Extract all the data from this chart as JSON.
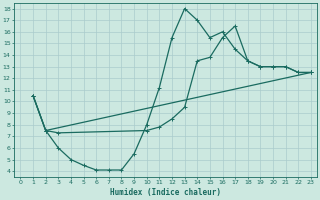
{
  "title": "",
  "xlabel": "Humidex (Indice chaleur)",
  "xlim": [
    -0.5,
    23.5
  ],
  "ylim": [
    3.5,
    18.5
  ],
  "xticks": [
    0,
    1,
    2,
    3,
    4,
    5,
    6,
    7,
    8,
    9,
    10,
    11,
    12,
    13,
    14,
    15,
    16,
    17,
    18,
    19,
    20,
    21,
    22,
    23
  ],
  "yticks": [
    4,
    5,
    6,
    7,
    8,
    9,
    10,
    11,
    12,
    13,
    14,
    15,
    16,
    17,
    18
  ],
  "bg_color": "#cce8e0",
  "grid_color": "#aacccc",
  "line_color": "#1a6b60",
  "line_width": 0.9,
  "marker": "+",
  "marker_size": 3,
  "curves": [
    {
      "x": [
        1,
        2,
        3,
        4,
        5,
        6,
        7,
        8,
        9,
        10,
        11,
        12,
        13,
        14,
        15,
        16,
        17,
        18,
        19,
        20,
        21,
        22,
        23
      ],
      "y": [
        10.5,
        7.5,
        6.0,
        5.0,
        4.5,
        4.1,
        4.1,
        4.1,
        5.5,
        8.0,
        11.2,
        15.5,
        18.0,
        17.0,
        15.5,
        16.0,
        14.5,
        13.5,
        13.0,
        13.0,
        13.0,
        12.5,
        12.5
      ]
    },
    {
      "x": [
        1,
        2,
        3,
        10,
        11,
        12,
        13,
        14,
        15,
        16,
        17,
        18,
        19,
        20,
        21,
        22,
        23
      ],
      "y": [
        10.5,
        7.5,
        7.3,
        7.5,
        7.8,
        8.5,
        9.5,
        13.5,
        13.8,
        15.5,
        16.5,
        13.5,
        13.0,
        13.0,
        13.0,
        12.5,
        12.5
      ]
    },
    {
      "x": [
        1,
        2,
        23
      ],
      "y": [
        10.5,
        7.5,
        12.5
      ]
    }
  ]
}
